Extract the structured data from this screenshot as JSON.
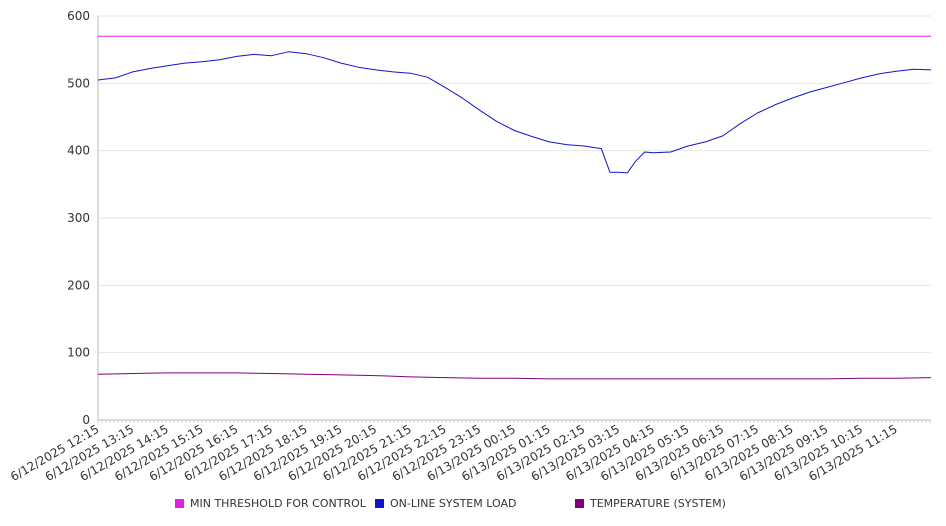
{
  "chart_data": {
    "type": "line",
    "title": "",
    "xlabel": "",
    "ylabel": "",
    "ylim": [
      0,
      600
    ],
    "y_ticks": [
      "0",
      "100",
      "200",
      "300",
      "400",
      "500",
      "600"
    ],
    "x_tick_labels": [
      "6/12/2025 12:15",
      "6/12/2025 13:15",
      "6/12/2025 14:15",
      "6/12/2025 15:15",
      "6/12/2025 16:15",
      "6/12/2025 17:15",
      "6/12/2025 18:15",
      "6/12/2025 19:15",
      "6/12/2025 20:15",
      "6/12/2025 21:15",
      "6/12/2025 22:15",
      "6/12/2025 23:15",
      "6/13/2025 00:15",
      "6/13/2025 01:15",
      "6/13/2025 02:15",
      "6/13/2025 03:15",
      "6/13/2025 04:15",
      "6/13/2025 05:15",
      "6/13/2025 06:15",
      "6/13/2025 07:15",
      "6/13/2025 08:15",
      "6/13/2025 09:15",
      "6/13/2025 10:15",
      "6/13/2025 11:15"
    ],
    "x_range": [
      "6/12/2025 12:15",
      "6/13/2025 12:15"
    ],
    "grid": "horizontal",
    "legend_position": "bottom",
    "series": [
      {
        "name": "MIN THRESHOLD FOR CONTROL",
        "color": "#e020e0",
        "points": [
          [
            "6/12/2025 12:15",
            570
          ],
          [
            "6/13/2025 12:15",
            570
          ]
        ]
      },
      {
        "name": "ON-LINE SYSTEM LOAD",
        "color": "#1414c8",
        "points": [
          [
            "6/12/2025 12:15",
            505
          ],
          [
            "6/12/2025 12:45",
            508
          ],
          [
            "6/12/2025 13:15",
            517
          ],
          [
            "6/12/2025 13:45",
            522
          ],
          [
            "6/12/2025 14:15",
            526
          ],
          [
            "6/12/2025 14:45",
            530
          ],
          [
            "6/12/2025 15:15",
            532
          ],
          [
            "6/12/2025 15:45",
            535
          ],
          [
            "6/12/2025 16:15",
            540
          ],
          [
            "6/12/2025 16:45",
            543
          ],
          [
            "6/12/2025 17:15",
            541
          ],
          [
            "6/12/2025 17:45",
            547
          ],
          [
            "6/12/2025 18:15",
            544
          ],
          [
            "6/12/2025 18:45",
            538
          ],
          [
            "6/12/2025 19:15",
            530
          ],
          [
            "6/12/2025 19:45",
            524
          ],
          [
            "6/12/2025 20:15",
            520
          ],
          [
            "6/12/2025 20:45",
            517
          ],
          [
            "6/12/2025 21:15",
            515
          ],
          [
            "6/12/2025 21:45",
            509
          ],
          [
            "6/12/2025 22:15",
            494
          ],
          [
            "6/12/2025 22:45",
            478
          ],
          [
            "6/12/2025 23:15",
            460
          ],
          [
            "6/12/2025 23:45",
            443
          ],
          [
            "6/13/2025 00:15",
            430
          ],
          [
            "6/13/2025 00:45",
            421
          ],
          [
            "6/13/2025 01:15",
            413
          ],
          [
            "6/13/2025 01:45",
            409
          ],
          [
            "6/13/2025 02:15",
            407
          ],
          [
            "6/13/2025 02:45",
            403
          ],
          [
            "6/13/2025 03:00",
            368
          ],
          [
            "6/13/2025 03:15",
            368
          ],
          [
            "6/13/2025 03:30",
            367
          ],
          [
            "6/13/2025 03:45",
            385
          ],
          [
            "6/13/2025 04:00",
            398
          ],
          [
            "6/13/2025 04:15",
            397
          ],
          [
            "6/13/2025 04:45",
            398
          ],
          [
            "6/13/2025 05:15",
            407
          ],
          [
            "6/13/2025 05:45",
            413
          ],
          [
            "6/13/2025 06:15",
            422
          ],
          [
            "6/13/2025 06:45",
            440
          ],
          [
            "6/13/2025 07:15",
            456
          ],
          [
            "6/13/2025 07:45",
            468
          ],
          [
            "6/13/2025 08:15",
            478
          ],
          [
            "6/13/2025 08:45",
            487
          ],
          [
            "6/13/2025 09:15",
            494
          ],
          [
            "6/13/2025 09:45",
            501
          ],
          [
            "6/13/2025 10:15",
            508
          ],
          [
            "6/13/2025 10:45",
            514
          ],
          [
            "6/13/2025 11:15",
            518
          ],
          [
            "6/13/2025 11:45",
            521
          ],
          [
            "6/13/2025 12:15",
            520
          ]
        ]
      },
      {
        "name": "TEMPERATURE (SYSTEM)",
        "color": "#800080",
        "points": [
          [
            "6/12/2025 12:15",
            68
          ],
          [
            "6/12/2025 13:15",
            69
          ],
          [
            "6/12/2025 14:15",
            70
          ],
          [
            "6/12/2025 15:15",
            70
          ],
          [
            "6/12/2025 16:15",
            70
          ],
          [
            "6/12/2025 17:15",
            69
          ],
          [
            "6/12/2025 18:15",
            68
          ],
          [
            "6/12/2025 19:15",
            67
          ],
          [
            "6/12/2025 20:15",
            66
          ],
          [
            "6/12/2025 21:15",
            64
          ],
          [
            "6/12/2025 22:15",
            63
          ],
          [
            "6/12/2025 23:15",
            62
          ],
          [
            "6/13/2025 00:15",
            62
          ],
          [
            "6/13/2025 01:15",
            61
          ],
          [
            "6/13/2025 02:15",
            61
          ],
          [
            "6/13/2025 03:15",
            61
          ],
          [
            "6/13/2025 04:15",
            61
          ],
          [
            "6/13/2025 05:15",
            61
          ],
          [
            "6/13/2025 06:15",
            61
          ],
          [
            "6/13/2025 07:15",
            61
          ],
          [
            "6/13/2025 08:15",
            61
          ],
          [
            "6/13/2025 09:15",
            61
          ],
          [
            "6/13/2025 10:15",
            62
          ],
          [
            "6/13/2025 11:15",
            62
          ],
          [
            "6/13/2025 12:15",
            63
          ]
        ]
      }
    ]
  },
  "legend": {
    "items": [
      {
        "label": "MIN THRESHOLD FOR CONTROL",
        "color": "#e020e0"
      },
      {
        "label": "ON-LINE SYSTEM LOAD",
        "color": "#1414c8"
      },
      {
        "label": "TEMPERATURE (SYSTEM)",
        "color": "#800080"
      }
    ]
  }
}
